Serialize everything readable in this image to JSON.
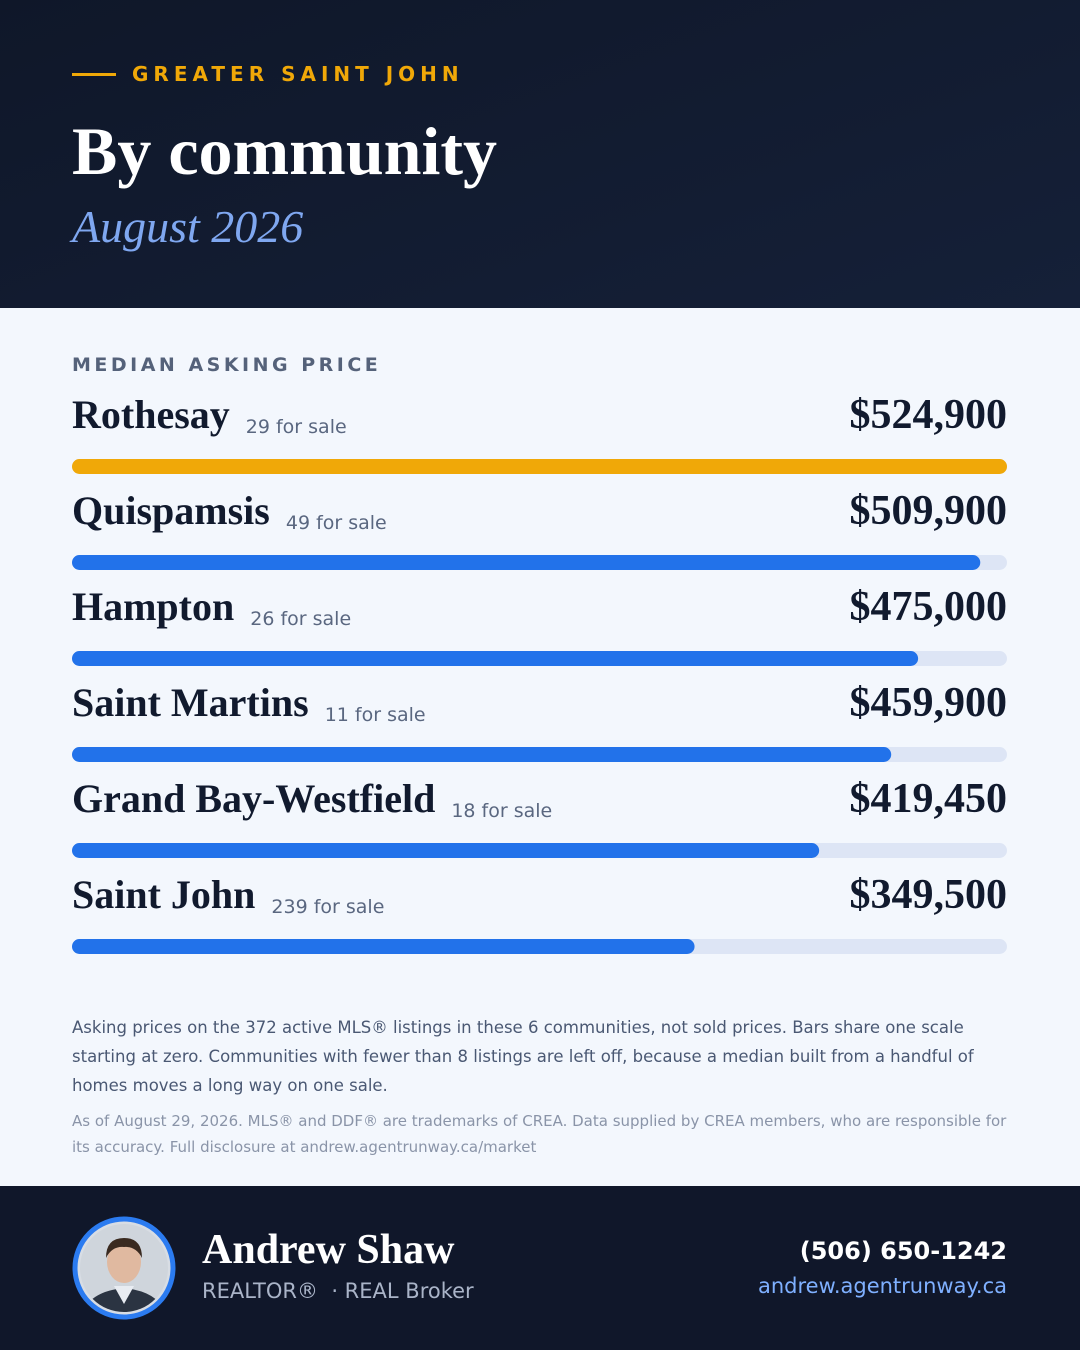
{
  "header": {
    "eyebrow": "GREATER SAINT JOHN",
    "title": "By community",
    "subtitle": "August 2026"
  },
  "chart_data": {
    "type": "bar",
    "orientation": "horizontal",
    "title": "MEDIAN ASKING PRICE",
    "categories": [
      "Rothesay",
      "Quispamsis",
      "Hampton",
      "Saint Martins",
      "Grand Bay-Westfield",
      "Saint John"
    ],
    "listings": [
      "29 for sale",
      "49 for sale",
      "26 for sale",
      "11 for sale",
      "18 for sale",
      "239 for sale"
    ],
    "values": [
      524900,
      509900,
      475000,
      459900,
      419450,
      349500
    ],
    "value_labels": [
      "$524,900",
      "$509,900",
      "$475,000",
      "$459,900",
      "$419,450",
      "$349,500"
    ],
    "colors": [
      "#f0a808",
      "#2272ea",
      "#2272ea",
      "#2272ea",
      "#2272ea",
      "#2272ea"
    ],
    "xlim": [
      0,
      524900
    ]
  },
  "notes": {
    "body": "Asking prices on the 372 active MLS® listings in these 6 communities, not sold prices. Bars share one scale starting at zero. Communities with fewer than 8 listings are left off, because a median built from a handful of homes moves a long way on one sale.",
    "disclosure": "As of August 29, 2026. MLS® and DDF® are trademarks of CREA. Data supplied by CREA members, who are responsible for its accuracy. Full disclosure at andrew.agentrunway.ca/market"
  },
  "footer": {
    "name": "Andrew Shaw",
    "role": "REALTOR®  · REAL Broker",
    "phone": "(506) 650-1242",
    "website": "andrew.agentrunway.ca"
  }
}
